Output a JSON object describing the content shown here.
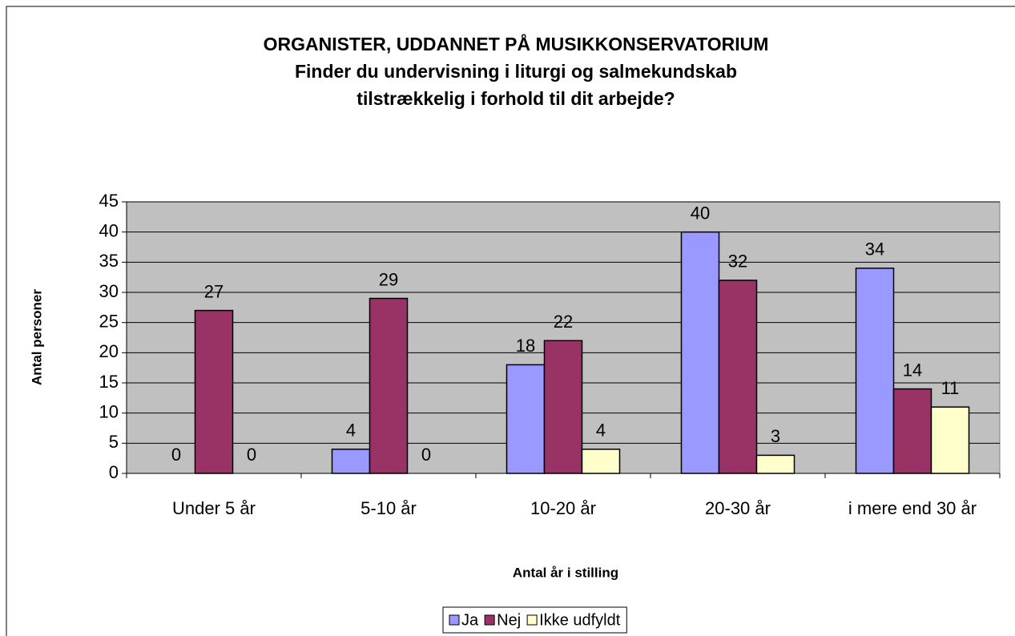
{
  "chart_data": {
    "type": "bar",
    "title": [
      "ORGANISTER, UDDANNET PÅ MUSIKKONSERVATORIUM",
      "Finder du undervisning i liturgi og salmekundskab",
      "tilstrækkelig i forhold til dit arbejde?"
    ],
    "x_label": "Antal år i stilling",
    "y_label": "Antal personer",
    "categories": [
      "Under 5 år",
      "5-10 år",
      "10-20 år",
      "20-30 år",
      "i mere end 30 år"
    ],
    "series": [
      {
        "name": "Ja",
        "color": "#9999FF",
        "values": [
          0,
          4,
          18,
          40,
          34
        ]
      },
      {
        "name": "Nej",
        "color": "#993366",
        "values": [
          27,
          29,
          22,
          32,
          14
        ]
      },
      {
        "name": "Ikke udfyldt",
        "color": "#FFFFCC",
        "values": [
          0,
          0,
          4,
          3,
          11
        ]
      }
    ],
    "ylim": [
      0,
      45
    ],
    "yticks": [
      0,
      5,
      10,
      15,
      20,
      25,
      30,
      35,
      40,
      45
    ],
    "grid": true,
    "plot_background": "#C0C0C0",
    "legend": "bottom"
  }
}
